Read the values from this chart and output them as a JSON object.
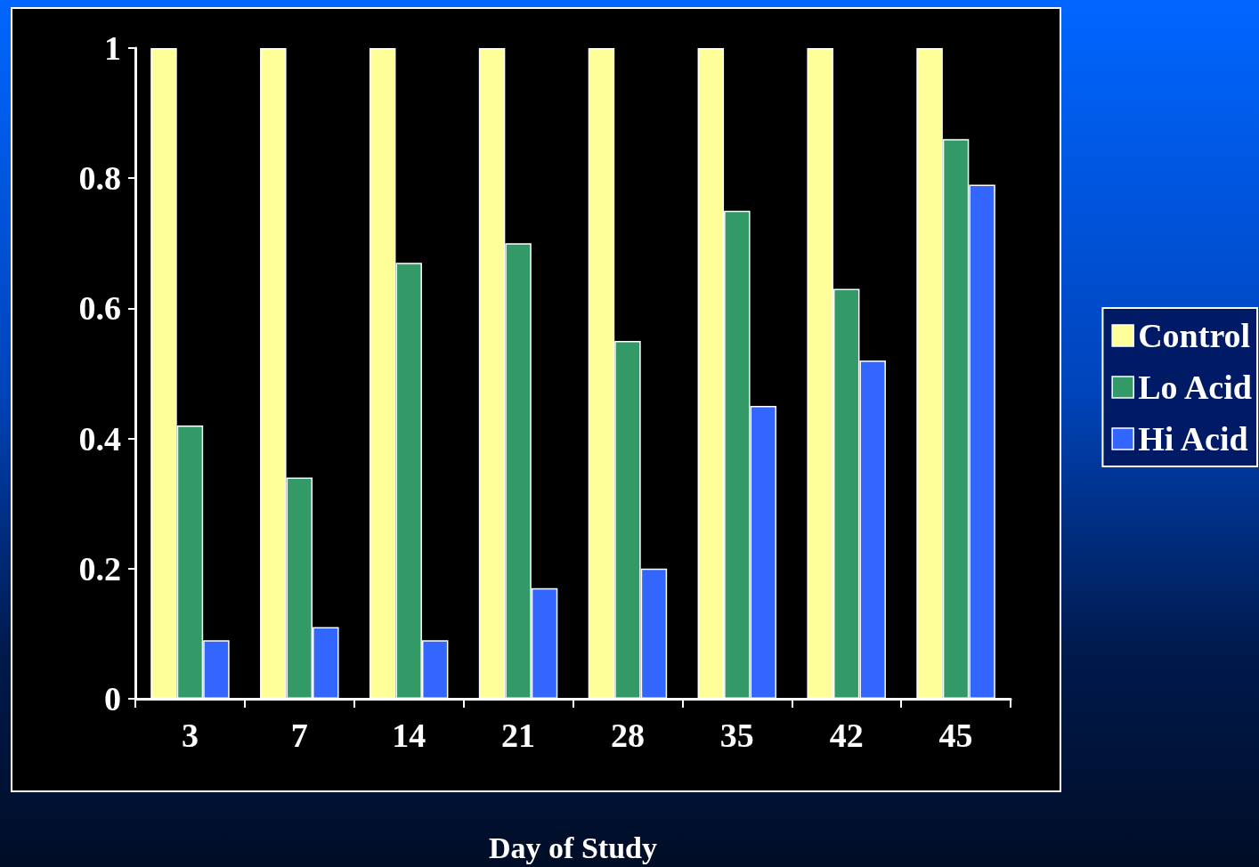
{
  "chart_data": {
    "type": "bar",
    "xlabel": "Day of Study",
    "categories": [
      "3",
      "7",
      "14",
      "21",
      "28",
      "35",
      "42",
      "45"
    ],
    "series": [
      {
        "name": "Control",
        "color": "#ffff99",
        "values": [
          1,
          1,
          1,
          1,
          1,
          1,
          1,
          1
        ]
      },
      {
        "name": "Lo Acid",
        "color": "#339966",
        "values": [
          0.42,
          0.34,
          0.67,
          0.7,
          0.55,
          0.75,
          0.63,
          0.86
        ]
      },
      {
        "name": "Hi Acid",
        "color": "#3366ff",
        "values": [
          0.09,
          0.11,
          0.09,
          0.17,
          0.2,
          0.45,
          0.52,
          0.79
        ]
      }
    ],
    "ylim": [
      0,
      1
    ],
    "yticks": [
      0,
      0.2,
      0.4,
      0.6,
      0.8,
      1
    ],
    "grid": false,
    "legend": "right"
  }
}
